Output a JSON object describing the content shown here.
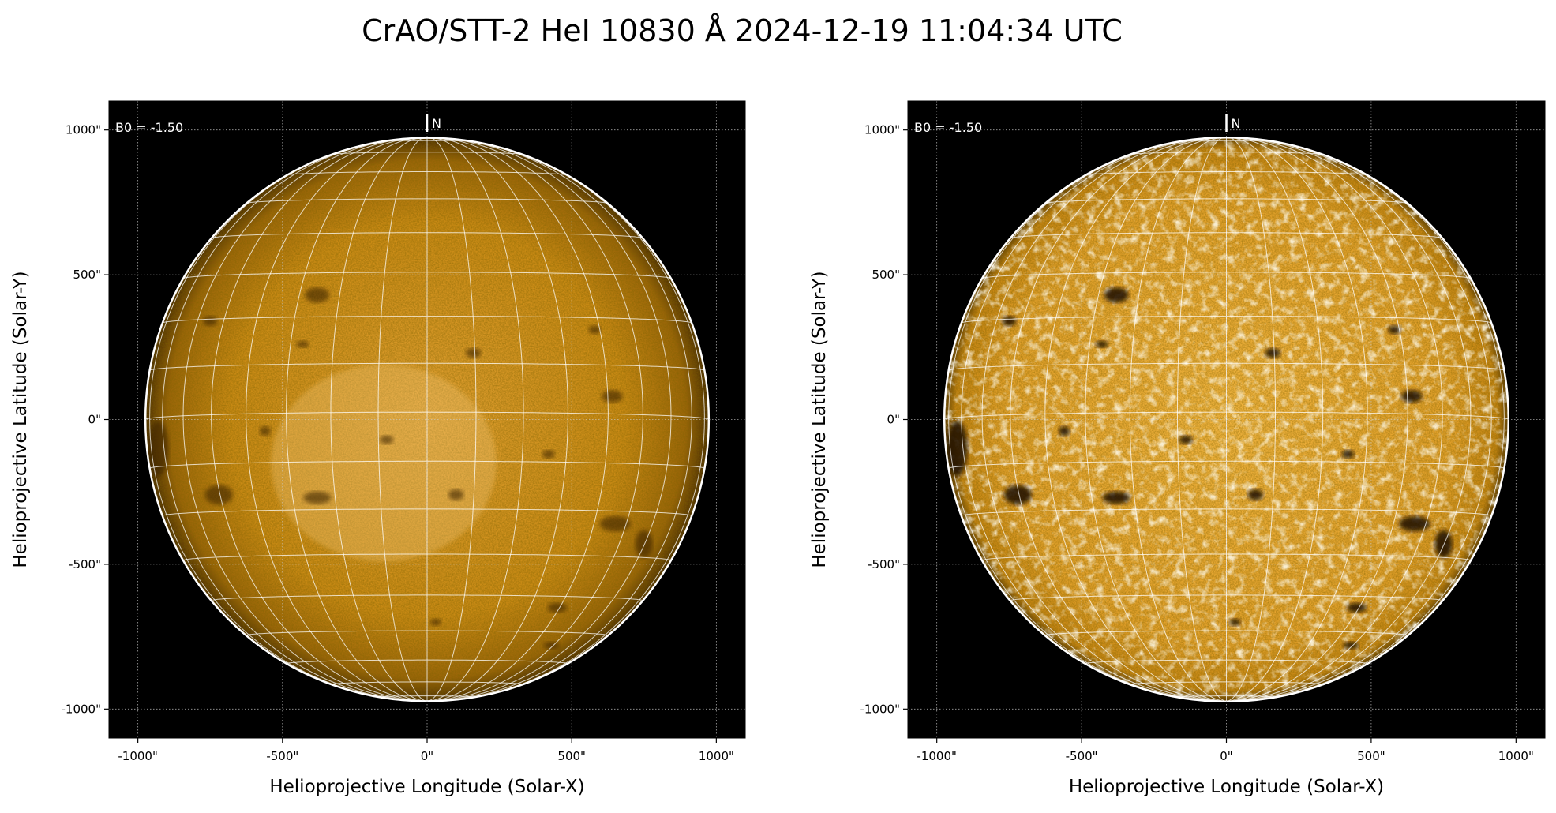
{
  "chart_data": [
    {
      "type": "heatmap",
      "title": "CrAO/STT-2 HeI 10830 Å 2024-12-19 11:04:34 UTC",
      "xlabel": "Helioprojective Longitude (Solar-X)",
      "ylabel": "Helioprojective Latitude (Solar-Y)",
      "xlim": [
        -1100,
        1100
      ],
      "ylim": [
        -1100,
        1100
      ],
      "xticks": [
        "-1000\"",
        "-500\"",
        "0\"",
        "500\"",
        "1000\""
      ],
      "yticks": [
        "1000\"",
        "500\"",
        "0\"",
        "-500\"",
        "-1000\""
      ],
      "xtick_values": [
        -1000,
        -500,
        0,
        500,
        1000
      ],
      "ytick_values": [
        1000,
        500,
        0,
        -500,
        -1000
      ],
      "grid": true,
      "solar_radius_arcsec": 974,
      "heliographic_grid_spacing_deg": 10,
      "annotation_b0": "B0 = -1.50",
      "b0_deg": -1.5,
      "north_marker": "N",
      "colormap": "orange (HeI 10830)",
      "contrast": "normal"
    },
    {
      "type": "heatmap",
      "xlabel": "Helioprojective Longitude (Solar-X)",
      "ylabel": "Helioprojective Latitude (Solar-Y)",
      "xlim": [
        -1100,
        1100
      ],
      "ylim": [
        -1100,
        1100
      ],
      "xticks": [
        "-1000\"",
        "-500\"",
        "0\"",
        "500\"",
        "1000\""
      ],
      "yticks": [
        "1000\"",
        "500\"",
        "0\"",
        "-500\"",
        "-1000\""
      ],
      "xtick_values": [
        -1000,
        -500,
        0,
        500,
        1000
      ],
      "ytick_values": [
        1000,
        500,
        0,
        -500,
        -1000
      ],
      "grid": true,
      "solar_radius_arcsec": 974,
      "heliographic_grid_spacing_deg": 10,
      "annotation_b0": "B0 = -1.50",
      "b0_deg": -1.5,
      "north_marker": "N",
      "colormap": "orange (HeI 10830)",
      "contrast": "enhanced"
    }
  ],
  "colors": {
    "disk": "#d58a0c",
    "disk_light": "#f0b84a",
    "background": "#000000",
    "grid": "#ffffff"
  }
}
